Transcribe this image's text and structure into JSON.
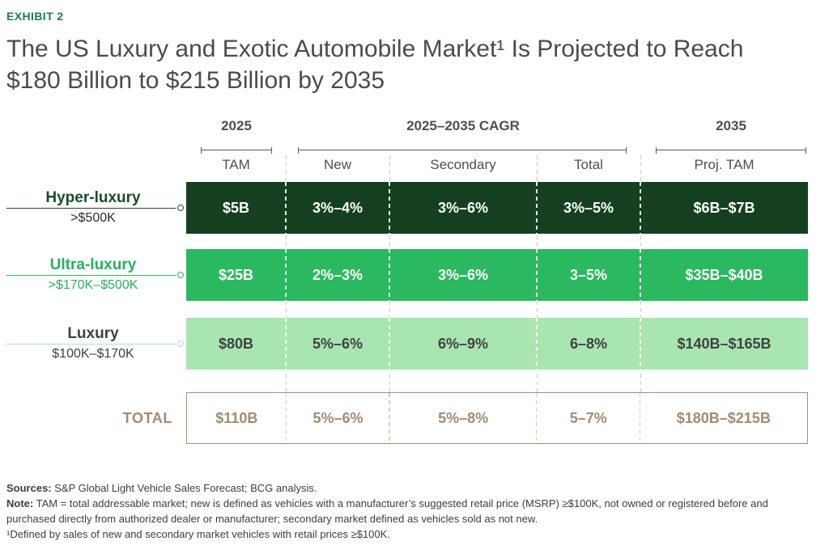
{
  "meta": {
    "exhibit_label": "EXHIBIT 2",
    "title_line1": "The US Luxury and Exotic Automobile Market¹ Is Projected to Reach",
    "title_line2": "$180 Billion to $215 Billion by 2035"
  },
  "header": {
    "groups": [
      {
        "label": "2025"
      },
      {
        "label": "2025–2035 CAGR"
      },
      {
        "label": "2035"
      }
    ],
    "sub_labels": [
      "TAM",
      "New",
      "Secondary",
      "Total",
      "Proj. TAM"
    ]
  },
  "chart_data": {
    "type": "table",
    "title": "The US Luxury and Exotic Automobile Market¹ Is Projected to Reach $180 Billion to $215 Billion by 2035",
    "column_groups": [
      "2025",
      "2025–2035 CAGR",
      "2025–2035 CAGR",
      "2025–2035 CAGR",
      "2035"
    ],
    "columns": [
      "TAM",
      "New",
      "Secondary",
      "Total",
      "Proj. TAM"
    ],
    "rows": [
      {
        "segment": "Hyper-luxury",
        "price_range": ">$500K",
        "values": [
          "$5B",
          "3%–4%",
          "3%–6%",
          "3%–5%",
          "$6B–$7B"
        ]
      },
      {
        "segment": "Ultra-luxury",
        "price_range": ">$170K–$500K",
        "values": [
          "$25B",
          "2%–3%",
          "3%–6%",
          "3–5%",
          "$35B–$40B"
        ]
      },
      {
        "segment": "Luxury",
        "price_range": "$100K–$170K",
        "values": [
          "$80B",
          "5%–6%",
          "6%–9%",
          "6–8%",
          "$140B–$165B"
        ]
      },
      {
        "segment": "TOTAL",
        "price_range": "",
        "values": [
          "$110B",
          "5%–6%",
          "5%–8%",
          "5–7%",
          "$180B–$215B"
        ]
      }
    ]
  },
  "colors": {
    "exhibit_green": "#1d7d4f",
    "hyper_bar": "#144020",
    "ultra_bar": "#2ab95f",
    "luxury_bar": "#a9e5b1",
    "total_tan": "#a28b70",
    "title_gray": "#4b4b4b",
    "header_gray": "#4f4f4f"
  },
  "footer": {
    "sources_label": "Sources:",
    "sources_text": " S&P Global Light Vehicle Sales Forecast; BCG analysis.",
    "note_label": "Note:",
    "note_text": " TAM = total addressable market; new is defined as vehicles with a manufacturer’s suggested retail price (MSRP) ≥$100K, not owned or registered before and purchased directly from authorized dealer or manufacturer; secondary market defined as vehicles sold as not new.",
    "footnote": "¹Defined by sales of new and secondary market vehicles with retail prices ≥$100K."
  }
}
